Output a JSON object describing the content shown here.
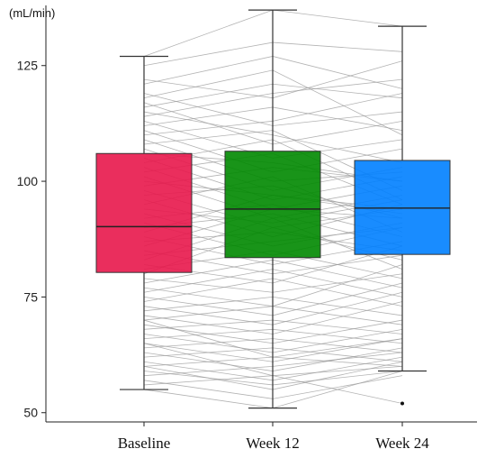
{
  "chart_data": {
    "type": "boxplot",
    "ylabel": "(mL/min)",
    "categories": [
      "Baseline",
      "Week 12",
      "Week 24"
    ],
    "yticks": [
      50,
      75,
      100,
      125
    ],
    "ylim": [
      48,
      138
    ],
    "colors": [
      "#e8174b",
      "#008800",
      "#0080ff"
    ],
    "boxes": [
      {
        "category": "Baseline",
        "min": 55,
        "q1": 80.3,
        "median": 90.2,
        "q3": 106,
        "max": 127,
        "outliers": []
      },
      {
        "category": "Week 12",
        "min": 51,
        "q1": 83.5,
        "median": 94,
        "q3": 106.5,
        "max": 137,
        "outliers": []
      },
      {
        "category": "Week 24",
        "min": 59,
        "q1": 84.2,
        "median": 94.2,
        "q3": 104.5,
        "max": 133.5,
        "outliers": [
          52
        ]
      }
    ],
    "grid": false,
    "legend": "none",
    "paired_lines": [
      [
        127,
        137,
        133.5
      ],
      [
        125,
        130,
        128
      ],
      [
        122,
        118,
        126
      ],
      [
        121,
        127,
        120
      ],
      [
        119,
        112,
        115
      ],
      [
        118,
        124,
        110
      ],
      [
        117,
        108,
        113
      ],
      [
        116,
        121,
        118
      ],
      [
        115,
        110,
        104
      ],
      [
        114,
        119,
        122
      ],
      [
        113,
        105,
        109
      ],
      [
        112,
        116,
        111
      ],
      [
        111,
        102,
        107
      ],
      [
        110,
        113,
        119
      ],
      [
        109,
        100,
        102
      ],
      [
        108,
        111,
        98
      ],
      [
        107,
        98,
        103
      ],
      [
        106,
        104,
        100
      ],
      [
        105,
        96,
        101
      ],
      [
        104,
        109,
        96
      ],
      [
        103,
        94,
        99
      ],
      [
        102,
        106,
        95
      ],
      [
        101,
        92,
        97
      ],
      [
        100,
        97,
        93
      ],
      [
        99,
        103,
        100
      ],
      [
        98,
        90,
        94
      ],
      [
        97,
        99,
        92
      ],
      [
        96,
        88,
        95
      ],
      [
        95,
        101,
        89
      ],
      [
        94,
        91,
        96
      ],
      [
        93,
        86,
        91
      ],
      [
        92,
        95,
        88
      ],
      [
        91,
        84,
        90
      ],
      [
        90,
        93,
        86
      ],
      [
        89,
        97,
        94
      ],
      [
        88,
        82,
        87
      ],
      [
        87,
        89,
        85
      ],
      [
        86,
        94,
        92
      ],
      [
        85,
        80,
        84
      ],
      [
        84,
        87,
        90
      ],
      [
        83,
        92,
        81
      ],
      [
        82,
        78,
        86
      ],
      [
        81,
        85,
        79
      ],
      [
        80,
        90,
        83
      ],
      [
        79,
        76,
        80
      ],
      [
        78,
        83,
        77
      ],
      [
        77,
        73,
        82
      ],
      [
        76,
        81,
        75
      ],
      [
        75,
        71,
        78
      ],
      [
        74,
        79,
        73
      ],
      [
        73,
        69,
        76
      ],
      [
        72,
        75,
        71
      ],
      [
        71,
        67,
        74
      ],
      [
        70,
        73,
        69
      ],
      [
        69,
        65,
        70
      ],
      [
        68,
        70,
        67
      ],
      [
        67,
        63,
        68
      ],
      [
        66,
        68,
        65
      ],
      [
        65,
        61,
        66
      ],
      [
        64,
        66,
        63
      ],
      [
        63,
        59,
        64
      ],
      [
        62,
        64,
        61
      ],
      [
        61,
        57,
        62
      ],
      [
        60,
        62,
        60
      ],
      [
        59,
        56,
        59
      ],
      [
        58,
        60,
        63
      ],
      [
        57,
        53,
        58
      ],
      [
        56,
        58,
        52
      ],
      [
        55,
        51,
        59
      ],
      [
        60,
        55,
        61
      ],
      [
        65,
        58,
        60
      ],
      [
        70,
        62,
        66
      ]
    ]
  }
}
